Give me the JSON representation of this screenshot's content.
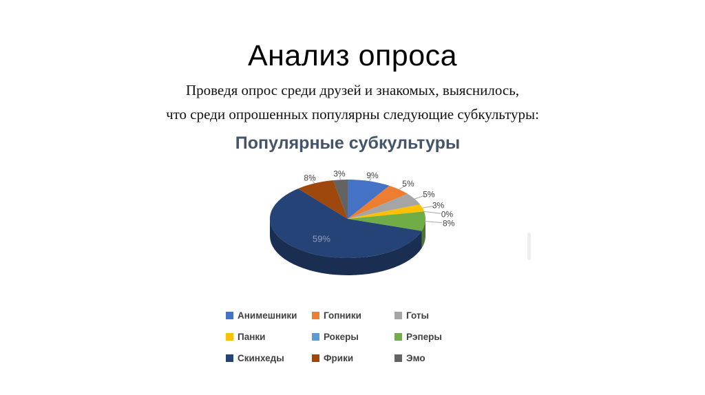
{
  "page": {
    "title": "Анализ опроса",
    "subtitle_line1": "Проведя опрос среди друзей и знакомых, выяснилось,",
    "subtitle_line2": "что среди опрошенных популярны следующие субкультуры:"
  },
  "chart_data": {
    "type": "pie",
    "is_3d": true,
    "title": "Популярные субкультуры",
    "title_color": "#44546A",
    "legend_position": "bottom",
    "start_angle_deg": 0,
    "direction": "clockwise",
    "labels": "percent",
    "inside_label_color": "#939FB9",
    "outside_label_color": "#3f3f3f",
    "series": [
      {
        "name": "Анимешники",
        "value": 9,
        "percent_label": "9%",
        "color": "#4472C4"
      },
      {
        "name": "Гопники",
        "value": 5,
        "percent_label": "5%",
        "color": "#ED7D31"
      },
      {
        "name": "Готы",
        "value": 5,
        "percent_label": "5%",
        "color": "#A5A5A5"
      },
      {
        "name": "Панки",
        "value": 3,
        "percent_label": "3%",
        "color": "#FFC000"
      },
      {
        "name": "Рокеры",
        "value": 0,
        "percent_label": "0%",
        "color": "#5B9BD5"
      },
      {
        "name": "Рэперы",
        "value": 8,
        "percent_label": "8%",
        "color": "#70AD47"
      },
      {
        "name": "Скинхеды",
        "value": 59,
        "percent_label": "59%",
        "color": "#264377"
      },
      {
        "name": "Фрики",
        "value": 8,
        "percent_label": "8%",
        "color": "#9E480E"
      },
      {
        "name": "Эмо",
        "value": 3,
        "percent_label": "3%",
        "color": "#636363"
      }
    ]
  }
}
